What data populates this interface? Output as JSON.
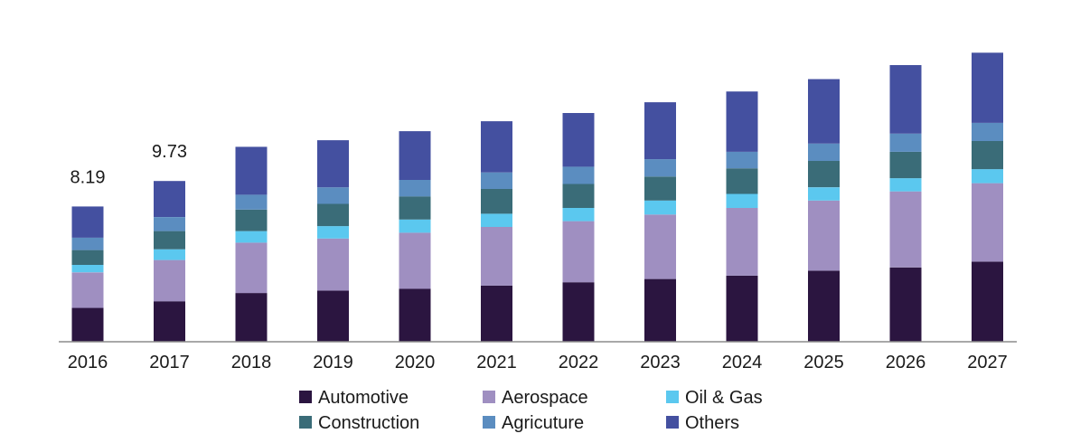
{
  "chart_data": {
    "type": "bar",
    "stacked": true,
    "title": "",
    "xlabel": "",
    "ylabel": "",
    "y_axis_shown": false,
    "grid": false,
    "legend_position": "bottom",
    "categories": [
      "2016",
      "2017",
      "2018",
      "2019",
      "2020",
      "2021",
      "2022",
      "2023",
      "2024",
      "2025",
      "2026",
      "2027"
    ],
    "data_labels": [
      {
        "category": "2016",
        "text": "8.19"
      },
      {
        "category": "2017",
        "text": "9.73"
      }
    ],
    "series": [
      {
        "name": "Automotive",
        "color": "#2b1540",
        "values": [
          2.05,
          2.45,
          2.95,
          3.1,
          3.2,
          3.4,
          3.6,
          3.8,
          4.0,
          4.3,
          4.5,
          4.85
        ]
      },
      {
        "name": "Aerospace",
        "color": "#9f8fc1",
        "values": [
          2.15,
          2.5,
          3.05,
          3.15,
          3.4,
          3.55,
          3.7,
          3.9,
          4.1,
          4.25,
          4.6,
          4.75
        ]
      },
      {
        "name": "Oil & Gas",
        "color": "#5bc8ef",
        "values": [
          0.45,
          0.65,
          0.7,
          0.75,
          0.8,
          0.8,
          0.8,
          0.85,
          0.85,
          0.8,
          0.8,
          0.85
        ]
      },
      {
        "name": "Construction",
        "color": "#3a6c78",
        "values": [
          0.9,
          1.1,
          1.3,
          1.35,
          1.4,
          1.5,
          1.45,
          1.45,
          1.55,
          1.6,
          1.6,
          1.7
        ]
      },
      {
        "name": "Agricuture",
        "color": "#5b8dc0",
        "values": [
          0.75,
          0.85,
          0.9,
          1.0,
          1.0,
          1.0,
          1.05,
          1.05,
          1.0,
          1.05,
          1.1,
          1.1
        ]
      },
      {
        "name": "Others",
        "color": "#4450a0",
        "values": [
          1.89,
          2.18,
          2.9,
          2.85,
          2.95,
          3.1,
          3.25,
          3.45,
          3.65,
          3.9,
          4.15,
          4.25
        ]
      }
    ],
    "ylim": [
      0,
      18.5
    ]
  }
}
